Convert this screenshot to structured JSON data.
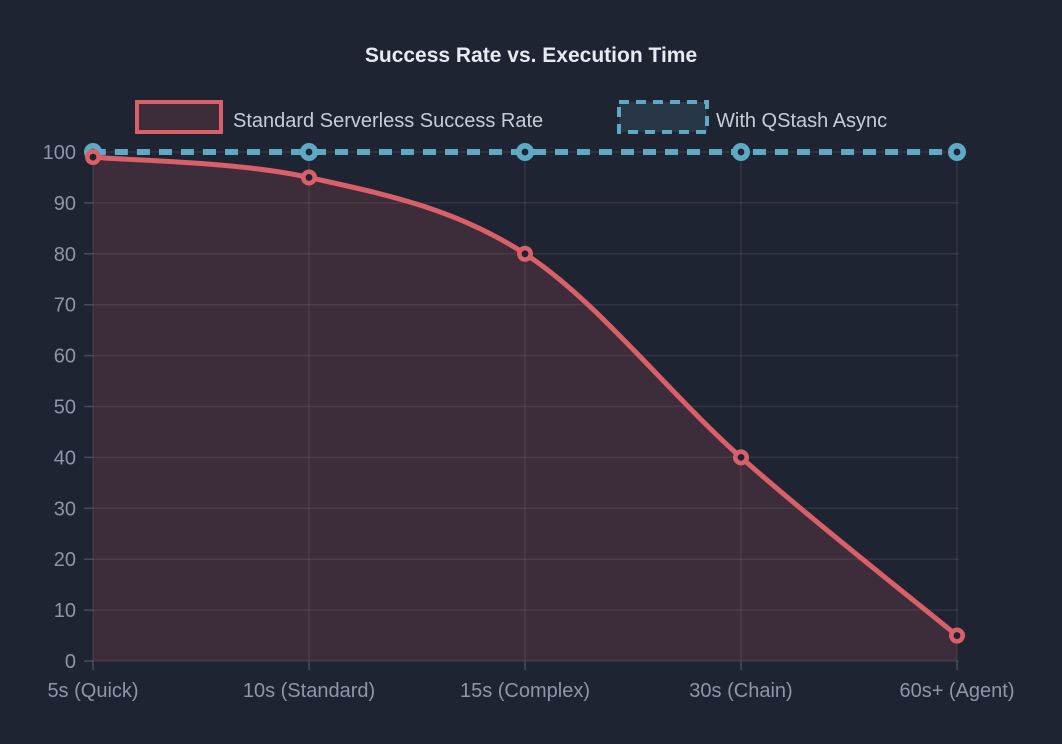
{
  "colors": {
    "background": "#1f2433",
    "grid": "rgba(255,255,255,0.08)",
    "tick_mark": "rgba(255,255,255,0.18)",
    "title_text": "#e7eaef",
    "legend_text": "#c7cdd7",
    "axis_text": "#8d97a6",
    "standard_red": "#d95f69",
    "qstash_blue": "#5fa9c4"
  },
  "chart_data": {
    "type": "line",
    "title": "Success Rate vs. Execution Time",
    "categories": [
      "5s (Quick)",
      "10s (Standard)",
      "15s (Complex)",
      "30s (Chain)",
      "60s+ (Agent)"
    ],
    "series": [
      {
        "name": "Standard Serverless Success Rate",
        "values": [
          99,
          95,
          80,
          40,
          5
        ],
        "color": "#d95f69",
        "line_style": "solid",
        "area_fill": true
      },
      {
        "name": "With QStash Async",
        "values": [
          100,
          100,
          100,
          100,
          100
        ],
        "color": "#5fa9c4",
        "line_style": "dashed",
        "area_fill": false
      }
    ],
    "xlabel": "",
    "ylabel": "",
    "ylim": [
      0,
      100
    ],
    "yticks": [
      0,
      10,
      20,
      30,
      40,
      50,
      60,
      70,
      80,
      90,
      100
    ],
    "grid": true,
    "legend_position": "top"
  }
}
